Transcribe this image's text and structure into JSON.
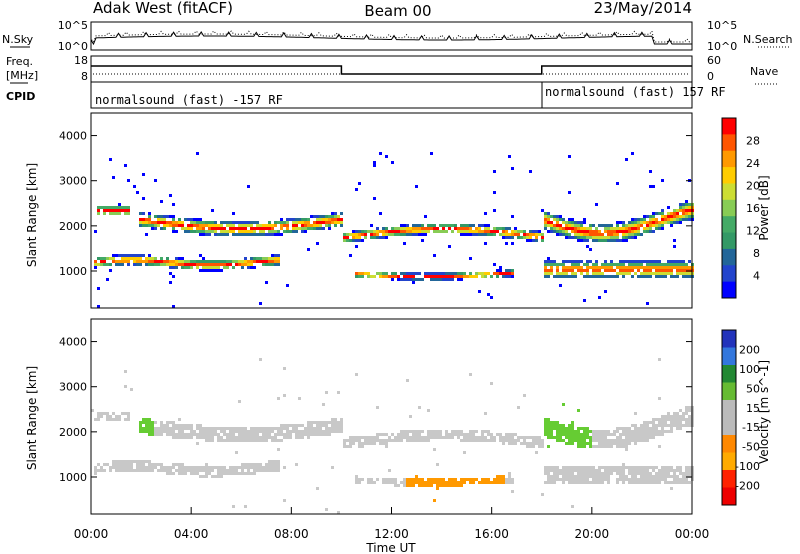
{
  "header": {
    "station": "Adak West (fitACF)",
    "beam": "Beam 00",
    "date": "23/May/2014"
  },
  "chart_data": [
    {
      "type": "line",
      "name_left": "N.Sky",
      "name_right": "N.Search",
      "left_ticks": [
        "10^5",
        "10^0"
      ],
      "right_ticks": [
        "10^5",
        "10^0"
      ],
      "description_values": "noise levels along time"
    },
    {
      "type": "line",
      "left_label_line1": "Freq.",
      "left_label_line2": "[MHz]",
      "right_label": "Nave",
      "left_ticks": [
        "18",
        "8"
      ],
      "right_ticks": [
        "60",
        "0"
      ],
      "freq_steps": [
        {
          "x0": 0,
          "x1": 10,
          "level": "high"
        },
        {
          "x0": 10,
          "x1": 18,
          "level": "low"
        },
        {
          "x0": 18,
          "x1": 24,
          "level": "high"
        }
      ]
    },
    {
      "type": "table",
      "label": "CPID",
      "segments": [
        {
          "text": "normalsound (fast) -157 RF",
          "start_hour": 0
        },
        {
          "text": "normalsound (fast) 157 RF",
          "start_hour": 18
        }
      ]
    },
    {
      "type": "heatmap",
      "ylabel": "Slant Range [km]",
      "yticks": [
        1000,
        2000,
        3000,
        4000
      ],
      "ylim": [
        180,
        4500
      ],
      "colorbar_label": "Power [dB]",
      "colorbar_ticks": [
        "28",
        "24",
        "20",
        "16",
        "12",
        "8",
        "4"
      ],
      "colorbar_colors": [
        "#ff0000",
        "#ff5500",
        "#ff9900",
        "#ffcc00",
        "#ccdd33",
        "#88cc55",
        "#44aa66",
        "#339966",
        "#226699",
        "#2244cc",
        "#0000ff"
      ]
    },
    {
      "type": "heatmap",
      "ylabel": "Slant Range [km]",
      "yticks": [
        1000,
        2000,
        3000,
        4000
      ],
      "ylim": [
        180,
        4500
      ],
      "colorbar_label": "Velocity [m s^-1]",
      "colorbar_ticks": [
        "200",
        "100",
        "50",
        "15",
        "-15",
        "-50",
        "-100",
        "-200"
      ],
      "colorbar_colors": [
        "#2233bb",
        "#3377dd",
        "#228833",
        "#66bb33",
        "#bbbbbb",
        "#bbbbbb",
        "#ff8800",
        "#ffaa00",
        "#ff2200",
        "#ee0000"
      ],
      "xlabel": "Time UT",
      "xticks": [
        "00:00",
        "04:00",
        "08:00",
        "12:00",
        "16:00",
        "20:00",
        "00:00"
      ]
    }
  ]
}
